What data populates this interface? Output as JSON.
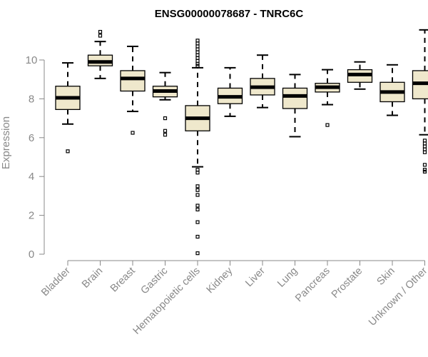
{
  "chart_data": {
    "type": "box",
    "title": "ENSG00000078687 - TNRC6C",
    "xlabel": "",
    "ylabel": "Expression",
    "ylim": [
      0,
      11.5
    ],
    "yticks": [
      0,
      2,
      4,
      6,
      8,
      10
    ],
    "grid": false,
    "legend": "none",
    "colors": {
      "box_fill": "#efe8cc",
      "stroke": "#000000",
      "axis": "#888888"
    },
    "categories": [
      "Bladder",
      "Brain",
      "Breast",
      "Gastric",
      "Hematopoietic cells",
      "Kidney",
      "Liver",
      "Lung",
      "Pancreas",
      "Prostate",
      "Skin",
      "Unknown / Other"
    ],
    "boxes": [
      {
        "category": "Bladder",
        "q1": 7.45,
        "median": 8.05,
        "q3": 8.65,
        "whisker_low": 6.7,
        "whisker_high": 9.85,
        "outliers": [
          5.3
        ]
      },
      {
        "category": "Brain",
        "q1": 9.7,
        "median": 9.9,
        "q3": 10.25,
        "whisker_low": 9.05,
        "whisker_high": 10.95,
        "outliers": [
          11.25,
          11.45
        ]
      },
      {
        "category": "Breast",
        "q1": 8.4,
        "median": 9.05,
        "q3": 9.45,
        "whisker_low": 7.35,
        "whisker_high": 10.7,
        "outliers": [
          6.25
        ]
      },
      {
        "category": "Gastric",
        "q1": 8.1,
        "median": 8.4,
        "q3": 8.65,
        "whisker_low": 7.95,
        "whisker_high": 9.35,
        "outliers": [
          7.0,
          6.35,
          6.15
        ]
      },
      {
        "category": "Hematopoietic cells",
        "q1": 6.35,
        "median": 7.0,
        "q3": 7.65,
        "whisker_low": 4.5,
        "whisker_high": 9.6,
        "outliers": [
          11.0,
          10.85,
          10.7,
          10.55,
          10.4,
          10.25,
          10.1,
          9.95,
          9.8,
          9.7,
          4.35,
          4.2,
          3.5,
          3.3,
          3.05,
          2.5,
          2.3,
          1.65,
          0.9,
          0.05
        ]
      },
      {
        "category": "Kidney",
        "q1": 7.75,
        "median": 8.1,
        "q3": 8.55,
        "whisker_low": 7.1,
        "whisker_high": 9.6,
        "outliers": []
      },
      {
        "category": "Liver",
        "q1": 8.2,
        "median": 8.6,
        "q3": 9.05,
        "whisker_low": 7.55,
        "whisker_high": 10.25,
        "outliers": []
      },
      {
        "category": "Lung",
        "q1": 7.5,
        "median": 8.15,
        "q3": 8.55,
        "whisker_low": 6.05,
        "whisker_high": 9.25,
        "outliers": []
      },
      {
        "category": "Pancreas",
        "q1": 8.35,
        "median": 8.6,
        "q3": 8.8,
        "whisker_low": 7.7,
        "whisker_high": 9.5,
        "outliers": [
          6.65
        ]
      },
      {
        "category": "Prostate",
        "q1": 8.85,
        "median": 9.25,
        "q3": 9.5,
        "whisker_low": 8.5,
        "whisker_high": 9.9,
        "outliers": []
      },
      {
        "category": "Skin",
        "q1": 7.85,
        "median": 8.35,
        "q3": 8.85,
        "whisker_low": 7.15,
        "whisker_high": 9.75,
        "outliers": []
      },
      {
        "category": "Unknown / Other",
        "q1": 8.0,
        "median": 8.8,
        "q3": 9.45,
        "whisker_low": 6.15,
        "whisker_high": 11.55,
        "outliers": [
          5.85,
          5.7,
          5.55,
          5.4,
          5.25,
          4.6,
          4.35,
          4.25
        ]
      }
    ]
  }
}
